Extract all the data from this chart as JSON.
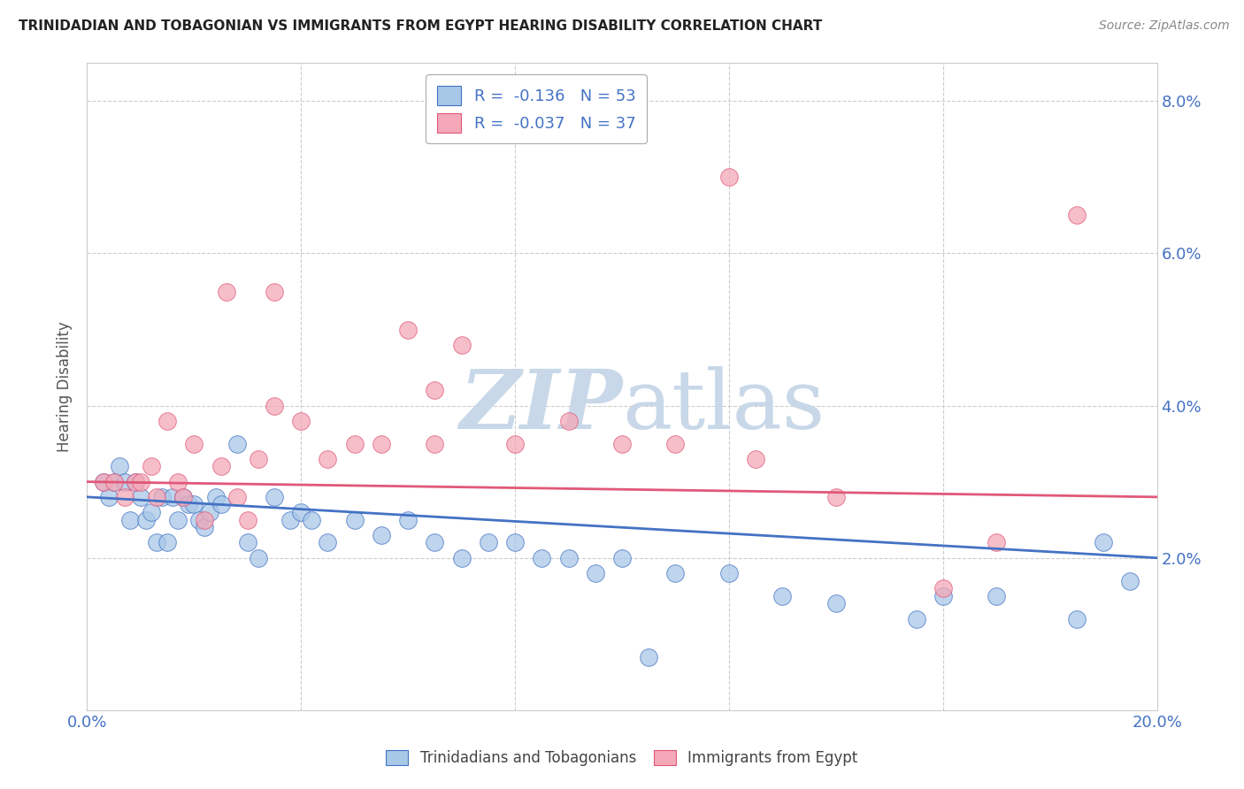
{
  "title": "TRINIDADIAN AND TOBAGONIAN VS IMMIGRANTS FROM EGYPT HEARING DISABILITY CORRELATION CHART",
  "source": "Source: ZipAtlas.com",
  "ylabel": "Hearing Disability",
  "xlim": [
    0.0,
    0.2
  ],
  "ylim": [
    0.0,
    0.085
  ],
  "yticks": [
    0.02,
    0.04,
    0.06,
    0.08
  ],
  "ytick_labels": [
    "2.0%",
    "4.0%",
    "6.0%",
    "8.0%"
  ],
  "xticks": [
    0.0,
    0.04,
    0.08,
    0.12,
    0.16,
    0.2
  ],
  "xtick_labels": [
    "0.0%",
    "",
    "",
    "",
    "",
    "20.0%"
  ],
  "legend_label1": "Trinidadians and Tobagonians",
  "legend_label2": "Immigrants from Egypt",
  "color_blue": "#a8c8e8",
  "color_pink": "#f4a8b8",
  "line_color_blue": "#4472c4",
  "line_color_pink": "#e05878",
  "title_color": "#222222",
  "axis_color": "#4472c4",
  "background_color": "#ffffff",
  "grid_color": "#cccccc",
  "watermark_color": "#c8d8e8",
  "blue_points_x": [
    0.003,
    0.004,
    0.005,
    0.006,
    0.007,
    0.008,
    0.009,
    0.01,
    0.011,
    0.012,
    0.013,
    0.014,
    0.015,
    0.016,
    0.017,
    0.018,
    0.019,
    0.02,
    0.021,
    0.022,
    0.023,
    0.024,
    0.025,
    0.028,
    0.03,
    0.032,
    0.035,
    0.038,
    0.04,
    0.042,
    0.045,
    0.05,
    0.055,
    0.06,
    0.065,
    0.07,
    0.075,
    0.08,
    0.085,
    0.09,
    0.095,
    0.1,
    0.11,
    0.12,
    0.13,
    0.14,
    0.155,
    0.16,
    0.17,
    0.185,
    0.19,
    0.195,
    0.105
  ],
  "blue_points_y": [
    0.03,
    0.028,
    0.03,
    0.032,
    0.03,
    0.025,
    0.03,
    0.028,
    0.025,
    0.026,
    0.022,
    0.028,
    0.022,
    0.028,
    0.025,
    0.028,
    0.027,
    0.027,
    0.025,
    0.024,
    0.026,
    0.028,
    0.027,
    0.035,
    0.022,
    0.02,
    0.028,
    0.025,
    0.026,
    0.025,
    0.022,
    0.025,
    0.023,
    0.025,
    0.022,
    0.02,
    0.022,
    0.022,
    0.02,
    0.02,
    0.018,
    0.02,
    0.018,
    0.018,
    0.015,
    0.014,
    0.012,
    0.015,
    0.015,
    0.012,
    0.022,
    0.017,
    0.007
  ],
  "pink_points_x": [
    0.003,
    0.005,
    0.007,
    0.009,
    0.01,
    0.012,
    0.013,
    0.015,
    0.017,
    0.018,
    0.02,
    0.022,
    0.025,
    0.028,
    0.03,
    0.032,
    0.035,
    0.04,
    0.045,
    0.05,
    0.055,
    0.06,
    0.065,
    0.07,
    0.08,
    0.09,
    0.1,
    0.11,
    0.125,
    0.14,
    0.16,
    0.17,
    0.185,
    0.026,
    0.035,
    0.065,
    0.12
  ],
  "pink_points_y": [
    0.03,
    0.03,
    0.028,
    0.03,
    0.03,
    0.032,
    0.028,
    0.038,
    0.03,
    0.028,
    0.035,
    0.025,
    0.032,
    0.028,
    0.025,
    0.033,
    0.04,
    0.038,
    0.033,
    0.035,
    0.035,
    0.05,
    0.035,
    0.048,
    0.035,
    0.038,
    0.035,
    0.035,
    0.033,
    0.028,
    0.016,
    0.022,
    0.065,
    0.055,
    0.055,
    0.042,
    0.07
  ]
}
